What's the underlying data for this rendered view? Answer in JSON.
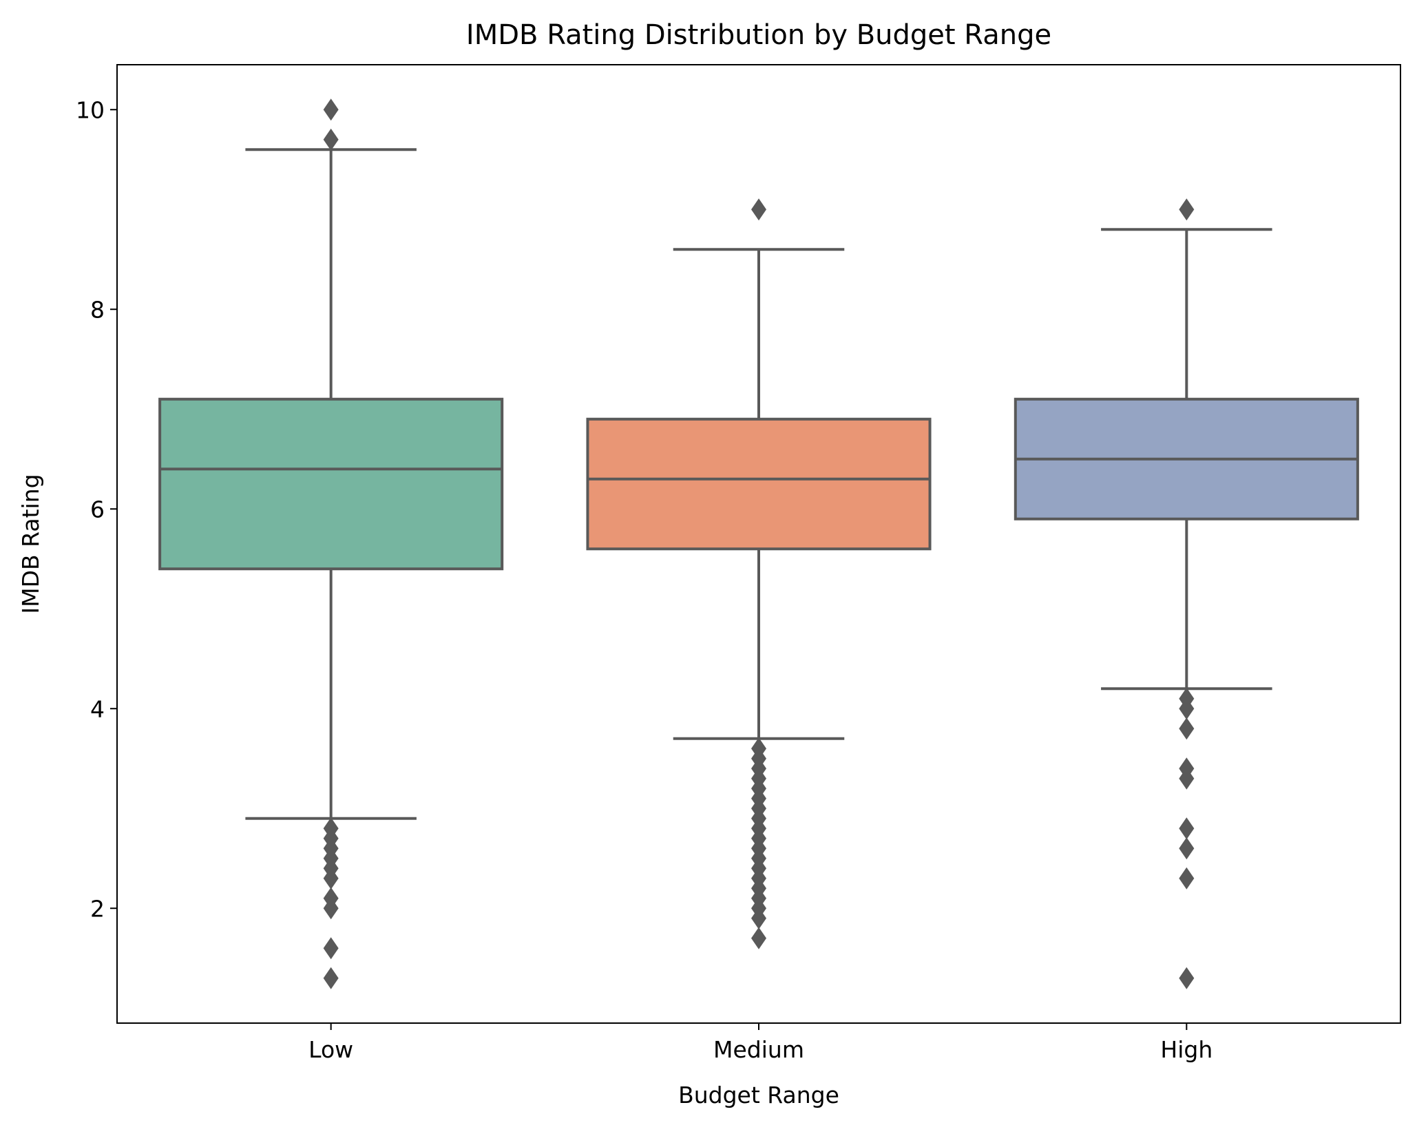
{
  "chart_data": {
    "type": "box",
    "title": "IMDB Rating Distribution by Budget Range",
    "xlabel": "Budget Range",
    "ylabel": "IMDB Rating",
    "ylim": [
      0.85,
      10.45
    ],
    "yticks": [
      2,
      4,
      6,
      8,
      10
    ],
    "categories": [
      "Low",
      "Medium",
      "High"
    ],
    "colors": [
      "#76b5a0",
      "#e99675",
      "#95a4c3"
    ],
    "edge_color": "#595959",
    "grid": false,
    "boxes": [
      {
        "category": "Low",
        "whisker_low": 2.9,
        "q1": 5.4,
        "median": 6.4,
        "q3": 7.1,
        "whisker_high": 9.6,
        "outliers": [
          10.0,
          9.7,
          2.8,
          2.7,
          2.6,
          2.5,
          2.4,
          2.3,
          2.1,
          2.0,
          1.6,
          1.3
        ]
      },
      {
        "category": "Medium",
        "whisker_low": 3.7,
        "q1": 5.6,
        "median": 6.3,
        "q3": 6.9,
        "whisker_high": 8.6,
        "outliers": [
          9.0,
          3.6,
          3.5,
          3.4,
          3.3,
          3.2,
          3.1,
          3.0,
          2.9,
          2.8,
          2.7,
          2.6,
          2.5,
          2.4,
          2.3,
          2.2,
          2.1,
          2.0,
          1.9,
          1.7
        ]
      },
      {
        "category": "High",
        "whisker_low": 4.2,
        "q1": 5.9,
        "median": 6.5,
        "q3": 7.1,
        "whisker_high": 8.8,
        "outliers": [
          9.0,
          4.1,
          4.0,
          3.8,
          3.4,
          3.3,
          2.8,
          2.6,
          2.3,
          1.3
        ]
      }
    ]
  }
}
